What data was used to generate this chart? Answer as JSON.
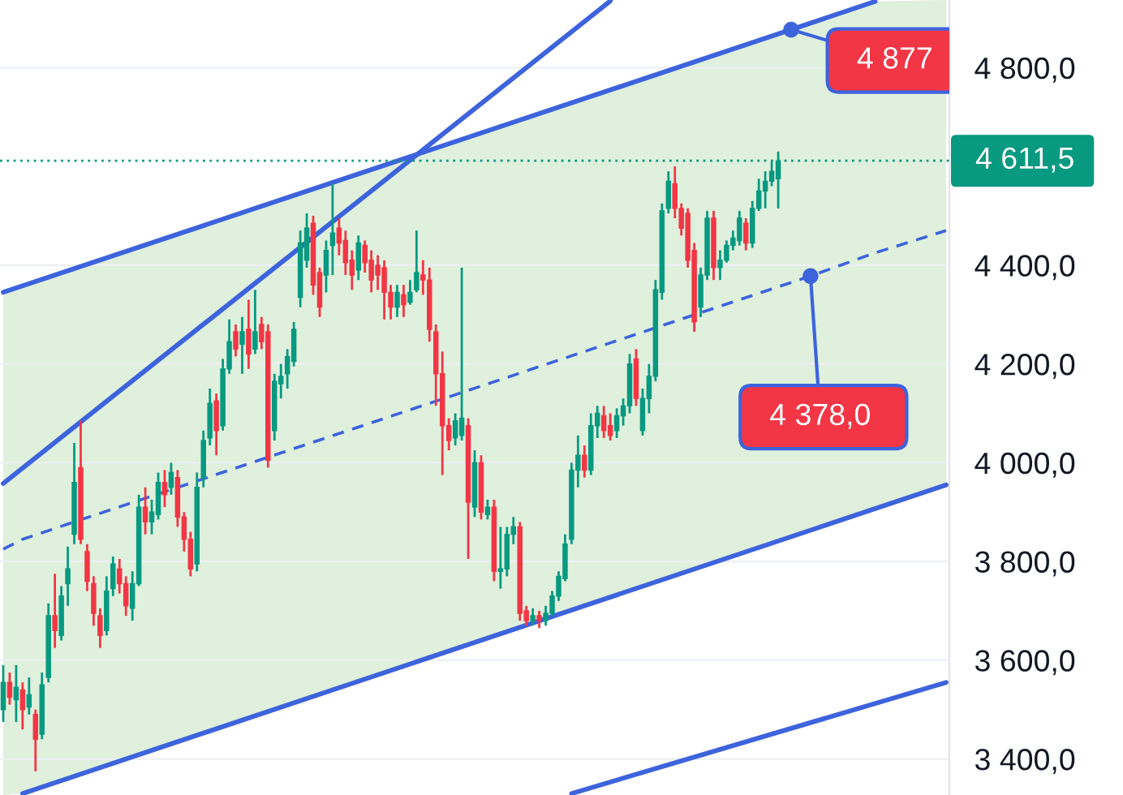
{
  "chart_data": {
    "type": "candlestick",
    "categories": [
      null,
      null,
      null,
      null,
      null,
      null,
      null,
      null,
      null,
      null,
      null,
      null,
      null,
      null,
      null,
      null,
      null,
      null,
      null,
      null,
      null,
      null,
      null,
      null,
      null,
      null,
      null,
      null,
      null,
      null,
      null,
      null,
      null,
      null,
      null,
      null,
      null,
      null,
      null,
      null,
      null,
      null,
      null,
      null,
      null,
      null,
      null,
      null,
      null,
      null,
      null,
      null,
      null,
      null,
      null,
      null,
      null,
      null,
      null,
      null,
      null,
      null,
      null,
      null,
      null,
      null,
      null,
      null,
      null,
      null,
      null,
      null,
      null,
      null,
      null,
      null,
      null,
      null,
      null,
      null,
      null,
      null,
      null,
      null,
      null,
      null,
      null,
      null,
      null,
      null,
      null,
      null,
      null,
      null,
      null,
      null,
      null,
      null,
      null,
      null,
      null,
      null,
      null,
      null,
      null,
      null,
      null,
      null,
      null,
      null,
      null,
      null,
      null,
      null,
      null,
      null,
      null,
      null,
      null,
      null,
      null,
      null,
      null,
      null,
      null,
      null,
      null,
      null,
      null,
      null,
      null,
      null,
      null,
      null,
      null,
      null,
      null,
      null,
      null,
      null,
      null,
      null,
      null,
      null,
      null,
      null,
      null
    ],
    "ohlc": [
      [
        3500,
        3590,
        3475,
        3555
      ],
      [
        3555,
        3575,
        3510,
        3525
      ],
      [
        3520,
        3590,
        3475,
        3545
      ],
      [
        3540,
        3555,
        3460,
        3500
      ],
      [
        3505,
        3565,
        3490,
        3530
      ],
      [
        3490,
        3500,
        3375,
        3440
      ],
      [
        3450,
        3575,
        3440,
        3550
      ],
      [
        3565,
        3715,
        3555,
        3690
      ],
      [
        3690,
        3775,
        3625,
        3660
      ],
      [
        3650,
        3750,
        3640,
        3730
      ],
      [
        3755,
        3830,
        3710,
        3785
      ],
      [
        3855,
        4040,
        3835,
        3960
      ],
      [
        3990,
        4085,
        3835,
        3845
      ],
      [
        3820,
        3835,
        3740,
        3760
      ],
      [
        3755,
        3770,
        3670,
        3695
      ],
      [
        3690,
        3705,
        3625,
        3650
      ],
      [
        3660,
        3770,
        3650,
        3740
      ],
      [
        3745,
        3810,
        3730,
        3795
      ],
      [
        3785,
        3805,
        3735,
        3755
      ],
      [
        3755,
        3770,
        3690,
        3710
      ],
      [
        3705,
        3780,
        3680,
        3755
      ],
      [
        3755,
        3935,
        3750,
        3910
      ],
      [
        3910,
        3950,
        3855,
        3880
      ],
      [
        3880,
        3925,
        3855,
        3900
      ],
      [
        3895,
        3980,
        3885,
        3960
      ],
      [
        3960,
        3985,
        3910,
        3935
      ],
      [
        3950,
        4000,
        3935,
        3980
      ],
      [
        3970,
        3985,
        3870,
        3890
      ],
      [
        3890,
        3900,
        3820,
        3845
      ],
      [
        3845,
        3860,
        3770,
        3785
      ],
      [
        3795,
        3980,
        3780,
        3950
      ],
      [
        3970,
        4065,
        3950,
        4045
      ],
      [
        4050,
        4150,
        4035,
        4120
      ],
      [
        4125,
        4140,
        4015,
        4065
      ],
      [
        4075,
        4210,
        4065,
        4190
      ],
      [
        4190,
        4290,
        4180,
        4245
      ],
      [
        4265,
        4280,
        4215,
        4230
      ],
      [
        4240,
        4295,
        4180,
        4265
      ],
      [
        4270,
        4330,
        4190,
        4220
      ],
      [
        4230,
        4350,
        4220,
        4265
      ],
      [
        4280,
        4295,
        4230,
        4245
      ],
      [
        4265,
        4280,
        3990,
        4005
      ],
      [
        4065,
        4180,
        4045,
        4165
      ],
      [
        4160,
        4200,
        4130,
        4175
      ],
      [
        4180,
        4230,
        4150,
        4215
      ],
      [
        4205,
        4285,
        4195,
        4270
      ],
      [
        4335,
        4470,
        4315,
        4445
      ],
      [
        4410,
        4505,
        4395,
        4475
      ],
      [
        4485,
        4500,
        4340,
        4360
      ],
      [
        4385,
        4395,
        4295,
        4315
      ],
      [
        4380,
        4450,
        4345,
        4430
      ],
      [
        4440,
        4565,
        4380,
        4465
      ],
      [
        4475,
        4495,
        4420,
        4445
      ],
      [
        4450,
        4470,
        4380,
        4405
      ],
      [
        4410,
        4430,
        4350,
        4380
      ],
      [
        4390,
        4460,
        4370,
        4445
      ],
      [
        4440,
        4450,
        4385,
        4405
      ],
      [
        4410,
        4430,
        4345,
        4370
      ],
      [
        4400,
        4420,
        4350,
        4380
      ],
      [
        4395,
        4410,
        4290,
        4345
      ],
      [
        4345,
        4360,
        4290,
        4315
      ],
      [
        4315,
        4360,
        4295,
        4345
      ],
      [
        4340,
        4360,
        4295,
        4320
      ],
      [
        4325,
        4370,
        4320,
        4345
      ],
      [
        4350,
        4470,
        4345,
        4385
      ],
      [
        4380,
        4410,
        4340,
        4370
      ],
      [
        4370,
        4395,
        4245,
        4270
      ],
      [
        4265,
        4280,
        4115,
        4180
      ],
      [
        4180,
        4225,
        3975,
        4075
      ],
      [
        4075,
        4090,
        4025,
        4045
      ],
      [
        4050,
        4100,
        4035,
        4085
      ],
      [
        4055,
        4395,
        4045,
        4090
      ],
      [
        4075,
        4090,
        3805,
        3920
      ],
      [
        3910,
        4025,
        3890,
        4000
      ],
      [
        4000,
        4015,
        3885,
        3900
      ],
      [
        3895,
        3925,
        3885,
        3910
      ],
      [
        3910,
        3925,
        3760,
        3780
      ],
      [
        3780,
        3870,
        3745,
        3785
      ],
      [
        3785,
        3870,
        3770,
        3855
      ],
      [
        3855,
        3890,
        3835,
        3870
      ],
      [
        3870,
        3880,
        3680,
        3695
      ],
      [
        3700,
        3710,
        3670,
        3680
      ],
      [
        3680,
        3705,
        3670,
        3690
      ],
      [
        3690,
        3700,
        3665,
        3680
      ],
      [
        3680,
        3710,
        3670,
        3695
      ],
      [
        3695,
        3740,
        3690,
        3730
      ],
      [
        3730,
        3780,
        3720,
        3770
      ],
      [
        3765,
        3855,
        3760,
        3835
      ],
      [
        3845,
        4000,
        3835,
        3985
      ],
      [
        3985,
        4055,
        3950,
        4015
      ],
      [
        4015,
        4035,
        3970,
        3985
      ],
      [
        3985,
        4100,
        3975,
        4075
      ],
      [
        4075,
        4115,
        4050,
        4100
      ],
      [
        4095,
        4115,
        4050,
        4065
      ],
      [
        4075,
        4100,
        4045,
        4055
      ],
      [
        4065,
        4110,
        4050,
        4095
      ],
      [
        4095,
        4130,
        4075,
        4115
      ],
      [
        4115,
        4220,
        4100,
        4200
      ],
      [
        4210,
        4230,
        4115,
        4130
      ],
      [
        4065,
        4150,
        4055,
        4130
      ],
      [
        4130,
        4200,
        4100,
        4175
      ],
      [
        4175,
        4370,
        4165,
        4350
      ],
      [
        4345,
        4525,
        4330,
        4510
      ],
      [
        4515,
        4590,
        4505,
        4570
      ],
      [
        4565,
        4600,
        4495,
        4515
      ],
      [
        4515,
        4525,
        4460,
        4475
      ],
      [
        4505,
        4515,
        4395,
        4410
      ],
      [
        4430,
        4445,
        4265,
        4285
      ],
      [
        4315,
        4395,
        4295,
        4380
      ],
      [
        4380,
        4510,
        4370,
        4495
      ],
      [
        4495,
        4510,
        4370,
        4395
      ],
      [
        4395,
        4430,
        4370,
        4410
      ],
      [
        4410,
        4450,
        4405,
        4440
      ],
      [
        4440,
        4470,
        4430,
        4455
      ],
      [
        4450,
        4510,
        4440,
        4495
      ],
      [
        4485,
        4495,
        4430,
        4445
      ],
      [
        4445,
        4530,
        4435,
        4515
      ],
      [
        4515,
        4575,
        4510,
        4550
      ],
      [
        4550,
        4590,
        4515,
        4570
      ],
      [
        4570,
        4610,
        4560,
        4590
      ],
      [
        4575,
        4630,
        4515,
        4611.5
      ],
      null,
      null,
      null,
      null,
      null,
      null,
      null,
      null,
      null,
      null,
      null,
      null,
      null,
      null,
      null,
      null,
      null,
      null,
      null,
      null,
      null,
      null,
      null,
      null,
      null,
      null
    ],
    "series": [
      {
        "type": "line",
        "color": "#3d63dd",
        "line_style": "dashed",
        "values": [
          3825,
          null,
          null,
          3845,
          null,
          null,
          null,
          null,
          null,
          null,
          null,
          null,
          null,
          null,
          null,
          null,
          null,
          null,
          null,
          null,
          null,
          null,
          null,
          null,
          null,
          null,
          null,
          null,
          null,
          null,
          null,
          null,
          null,
          null,
          null,
          null,
          null,
          null,
          null,
          null,
          null,
          null,
          null,
          null,
          null,
          null,
          null,
          null,
          null,
          null,
          null,
          null,
          null,
          null,
          null,
          null,
          null,
          null,
          null,
          null,
          null,
          null,
          null,
          null,
          null,
          null,
          null,
          null,
          null,
          null,
          null,
          null,
          null,
          null,
          null,
          null,
          null,
          null,
          null,
          null,
          null,
          null,
          null,
          null,
          null,
          null,
          null,
          null,
          null,
          null,
          null,
          null,
          null,
          null,
          null,
          null,
          null,
          null,
          null,
          null,
          null,
          null,
          null,
          null,
          null,
          null,
          null,
          null,
          null,
          null,
          null,
          null,
          null,
          null,
          null,
          null,
          null,
          null,
          null,
          null,
          null,
          null,
          null,
          null,
          null,
          4378,
          null,
          null,
          null,
          null,
          null,
          null,
          null,
          null,
          null,
          4425,
          null,
          null,
          null,
          null,
          null,
          null,
          null,
          null,
          null,
          null,
          4470
        ],
        "lower": [
          3327,
          null,
          null,
          3330,
          null,
          null,
          null,
          null,
          null,
          null,
          null,
          null,
          null,
          null,
          null,
          null,
          null,
          null,
          null,
          null,
          null,
          null,
          null,
          null,
          null,
          null,
          null,
          null,
          null,
          null,
          null,
          null,
          null,
          null,
          null,
          null,
          null,
          null,
          null,
          null,
          null,
          null,
          null,
          null,
          null,
          null,
          null,
          null,
          null,
          null,
          null,
          null,
          null,
          null,
          null,
          null,
          null,
          null,
          null,
          null,
          null,
          null,
          null,
          null,
          null,
          null,
          null,
          null,
          null,
          null,
          null,
          null,
          null,
          null,
          null,
          null,
          null,
          null,
          null,
          null,
          null,
          null,
          null,
          null,
          null,
          null,
          null,
          null,
          null,
          null,
          null,
          null,
          null,
          null,
          null,
          null,
          null,
          null,
          null,
          null,
          null,
          null,
          null,
          null,
          null,
          null,
          null,
          null,
          null,
          null,
          null,
          null,
          null,
          null,
          null,
          null,
          null,
          null,
          null,
          null,
          null,
          null,
          null,
          null,
          null,
          3865,
          null,
          null,
          null,
          null,
          null,
          null,
          null,
          null,
          null,
          3905,
          null,
          null,
          null,
          null,
          null,
          null,
          null,
          null,
          null,
          null,
          3955
        ],
        "upper": [
          4345,
          null,
          null,
          4360,
          null,
          null,
          null,
          null,
          null,
          null,
          null,
          null,
          null,
          null,
          null,
          null,
          null,
          null,
          null,
          null,
          null,
          null,
          null,
          null,
          null,
          null,
          null,
          null,
          null,
          null,
          null,
          null,
          null,
          null,
          null,
          null,
          null,
          null,
          null,
          null,
          null,
          null,
          null,
          null,
          null,
          null,
          null,
          null,
          null,
          null,
          null,
          null,
          null,
          null,
          null,
          null,
          null,
          null,
          null,
          null,
          null,
          null,
          null,
          null,
          null,
          null,
          null,
          null,
          null,
          null,
          null,
          null,
          null,
          null,
          null,
          null,
          null,
          null,
          null,
          null,
          null,
          null,
          null,
          null,
          null,
          null,
          null,
          null,
          null,
          null,
          null,
          null,
          null,
          null,
          null,
          null,
          null,
          null,
          null,
          null,
          null,
          null,
          null,
          null,
          null,
          null,
          null,
          null,
          null,
          null,
          null,
          null,
          null,
          null,
          null,
          null,
          null,
          null,
          null,
          null,
          null,
          null,
          null,
          null,
          null,
          4890,
          null,
          null,
          null,
          null,
          null,
          null,
          null,
          null,
          null,
          4934,
          null,
          null,
          null,
          null,
          null,
          null,
          null,
          null,
          null,
          null,
          4937
        ],
        "value_labels": [
          null,
          null,
          null,
          null,
          null,
          null,
          null,
          null,
          null,
          null,
          null,
          null,
          null,
          null,
          null,
          null,
          null,
          null,
          null,
          null,
          null,
          null,
          null,
          null,
          null,
          null,
          null,
          null,
          null,
          null,
          null,
          null,
          null,
          null,
          null,
          null,
          null,
          null,
          null,
          null,
          null,
          null,
          null,
          null,
          null,
          null,
          null,
          null,
          null,
          null,
          null,
          null,
          null,
          null,
          null,
          null,
          null,
          null,
          null,
          null,
          null,
          null,
          null,
          null,
          null,
          null,
          null,
          null,
          null,
          null,
          null,
          null,
          null,
          null,
          null,
          null,
          null,
          null,
          null,
          null,
          null,
          null,
          null,
          null,
          null,
          null,
          null,
          null,
          null,
          null,
          null,
          null,
          null,
          null,
          null,
          null,
          null,
          null,
          null,
          null,
          null,
          null,
          null,
          null,
          null,
          null,
          null,
          null,
          null,
          null,
          null,
          null,
          null,
          null,
          null,
          null,
          null,
          null,
          null,
          null,
          null,
          null,
          null,
          null,
          null,
          "4 378,0",
          null,
          null,
          null,
          null,
          null,
          null,
          null,
          null,
          null,
          null,
          null,
          null,
          null,
          null,
          null,
          null,
          null,
          null,
          null,
          null,
          null
        ]
      },
      {
        "type": "line",
        "color": "#3d63dd",
        "values": [
          4345,
          null,
          null,
          null,
          null,
          null,
          null,
          null,
          null,
          null,
          null,
          null,
          null,
          null,
          null,
          null,
          null,
          null,
          null,
          null,
          null,
          null,
          null,
          null,
          null,
          null,
          null,
          null,
          null,
          null,
          null,
          null,
          null,
          null,
          null,
          null,
          null,
          null,
          null,
          null,
          null,
          null,
          null,
          null,
          null,
          null,
          null,
          null,
          null,
          null,
          null,
          null,
          null,
          null,
          null,
          null,
          null,
          null,
          null,
          null,
          null,
          null,
          null,
          null,
          null,
          null,
          null,
          null,
          null,
          null,
          null,
          null,
          null,
          null,
          null,
          null,
          null,
          null,
          null,
          null,
          null,
          null,
          null,
          null,
          null,
          null,
          null,
          null,
          null,
          null,
          null,
          null,
          null,
          null,
          null,
          null,
          null,
          null,
          null,
          null,
          null,
          null,
          null,
          null,
          null,
          null,
          null,
          null,
          null,
          null,
          null,
          null,
          null,
          null,
          null,
          null,
          null,
          null,
          null,
          null,
          null,
          null,
          4877,
          null,
          null,
          null,
          null,
          null,
          null,
          null,
          null,
          null,
          null,
          null,
          null,
          4934,
          null,
          null,
          null,
          null,
          null,
          null,
          null,
          null,
          null,
          null,
          null
        ],
        "value_labels": [
          null,
          null,
          null,
          null,
          null,
          null,
          null,
          null,
          null,
          null,
          null,
          null,
          null,
          null,
          null,
          null,
          null,
          null,
          null,
          null,
          null,
          null,
          null,
          null,
          null,
          null,
          null,
          null,
          null,
          null,
          null,
          null,
          null,
          null,
          null,
          null,
          null,
          null,
          null,
          null,
          null,
          null,
          null,
          null,
          null,
          null,
          null,
          null,
          null,
          null,
          null,
          null,
          null,
          null,
          null,
          null,
          null,
          null,
          null,
          null,
          null,
          null,
          null,
          null,
          null,
          null,
          null,
          null,
          null,
          null,
          null,
          null,
          null,
          null,
          null,
          null,
          null,
          null,
          null,
          null,
          null,
          null,
          null,
          null,
          null,
          null,
          null,
          null,
          null,
          null,
          null,
          null,
          null,
          null,
          null,
          null,
          null,
          null,
          null,
          null,
          null,
          null,
          null,
          null,
          null,
          null,
          null,
          null,
          null,
          null,
          null,
          null,
          null,
          null,
          null,
          null,
          null,
          null,
          null,
          null,
          null,
          null,
          "4 877",
          null,
          null,
          null,
          null,
          null,
          null,
          null,
          null,
          null,
          null,
          null,
          null,
          null,
          null,
          null,
          null,
          null,
          null,
          null,
          null,
          null,
          null,
          null,
          null
        ]
      },
      {
        "type": "line",
        "color": "#3d63dd",
        "values": [
          null,
          null,
          null,
          3330,
          null,
          null,
          null,
          null,
          null,
          null,
          null,
          null,
          null,
          null,
          null,
          null,
          null,
          null,
          null,
          null,
          null,
          null,
          null,
          null,
          null,
          null,
          null,
          null,
          null,
          null,
          null,
          null,
          null,
          null,
          null,
          null,
          null,
          null,
          null,
          null,
          null,
          null,
          null,
          null,
          null,
          null,
          null,
          null,
          null,
          null,
          null,
          null,
          null,
          null,
          null,
          null,
          null,
          null,
          null,
          null,
          null,
          null,
          null,
          null,
          null,
          null,
          null,
          null,
          null,
          null,
          null,
          null,
          null,
          null,
          null,
          null,
          null,
          null,
          null,
          null,
          null,
          null,
          null,
          null,
          null,
          null,
          null,
          null,
          null,
          null,
          null,
          null,
          null,
          null,
          null,
          null,
          null,
          null,
          null,
          null,
          null,
          null,
          null,
          null,
          null,
          null,
          null,
          null,
          null,
          null,
          null,
          null,
          null,
          null,
          null,
          null,
          null,
          null,
          null,
          null,
          null,
          null,
          null,
          null,
          null,
          null,
          null,
          null,
          null,
          null,
          null,
          null,
          null,
          null,
          null,
          null,
          null,
          null,
          null,
          null,
          null,
          null,
          null,
          null,
          null,
          null,
          3955
        ]
      },
      {
        "type": "line",
        "color": "#3d63dd",
        "values": [
          3958,
          null,
          null,
          null,
          null,
          null,
          null,
          null,
          null,
          null,
          null,
          null,
          null,
          null,
          null,
          null,
          null,
          null,
          null,
          null,
          null,
          null,
          null,
          null,
          null,
          null,
          null,
          null,
          null,
          null,
          null,
          null,
          null,
          null,
          null,
          null,
          null,
          null,
          null,
          null,
          null,
          null,
          null,
          null,
          null,
          null,
          null,
          null,
          null,
          null,
          null,
          null,
          null,
          null,
          null,
          null,
          null,
          null,
          null,
          null,
          null,
          null,
          null,
          null,
          null,
          null,
          null,
          null,
          null,
          null,
          null,
          null,
          null,
          null,
          null,
          null,
          null,
          null,
          null,
          null,
          null,
          null,
          null,
          null,
          null,
          null,
          null,
          null,
          null,
          null,
          null,
          null,
          null,
          null,
          4935,
          null,
          null,
          null,
          null,
          null,
          null,
          null,
          null,
          null,
          null,
          null,
          null,
          null,
          null,
          null,
          null,
          null,
          null,
          null,
          null,
          null,
          null,
          null,
          null,
          null,
          null,
          null,
          null,
          null,
          null,
          null,
          null,
          null,
          null,
          null,
          null,
          null,
          null,
          null,
          null,
          null,
          null,
          null,
          null,
          null,
          null,
          null,
          null,
          null,
          null,
          null,
          null
        ]
      },
      {
        "type": "line",
        "color": "#3d63dd",
        "values": [
          null,
          null,
          null,
          null,
          null,
          null,
          null,
          null,
          null,
          null,
          null,
          null,
          null,
          null,
          null,
          null,
          null,
          null,
          null,
          null,
          null,
          null,
          null,
          null,
          null,
          null,
          null,
          null,
          null,
          null,
          null,
          null,
          null,
          null,
          null,
          null,
          null,
          null,
          null,
          null,
          null,
          null,
          null,
          null,
          null,
          null,
          null,
          null,
          null,
          null,
          null,
          null,
          null,
          null,
          null,
          null,
          null,
          null,
          null,
          null,
          null,
          null,
          null,
          null,
          null,
          null,
          null,
          null,
          null,
          null,
          null,
          null,
          null,
          null,
          null,
          null,
          null,
          null,
          null,
          null,
          null,
          null,
          null,
          null,
          null,
          null,
          null,
          null,
          3330,
          null,
          null,
          null,
          null,
          null,
          null,
          null,
          null,
          null,
          null,
          null,
          null,
          null,
          null,
          null,
          null,
          null,
          null,
          null,
          null,
          null,
          null,
          null,
          null,
          null,
          null,
          null,
          null,
          null,
          null,
          null,
          null,
          null,
          null,
          null,
          null,
          null,
          null,
          null,
          null,
          null,
          null,
          null,
          null,
          null,
          null,
          null,
          null,
          null,
          null,
          null,
          null,
          null,
          null,
          null,
          null,
          null,
          3555
        ]
      }
    ],
    "ref_lines": [
      {
        "axis": "y",
        "value": 4611.5,
        "label": "4 611,5",
        "color": "#089981",
        "line_style": "dotted"
      }
    ],
    "ylim": [
      3327,
      4937
    ],
    "yticks": [
      {
        "value": 3400,
        "label": "3 400,0"
      },
      {
        "value": 3600,
        "label": "3 600,0"
      },
      {
        "value": 3800,
        "label": "3 800,0"
      },
      {
        "value": 4000,
        "label": "4 000,0"
      },
      {
        "value": 4200,
        "label": "4 200,0"
      },
      {
        "value": 4400,
        "label": "4 400,0"
      },
      {
        "value": 4800,
        "label": "4 800,0"
      }
    ],
    "grid": "y",
    "tick_labels": "y"
  }
}
